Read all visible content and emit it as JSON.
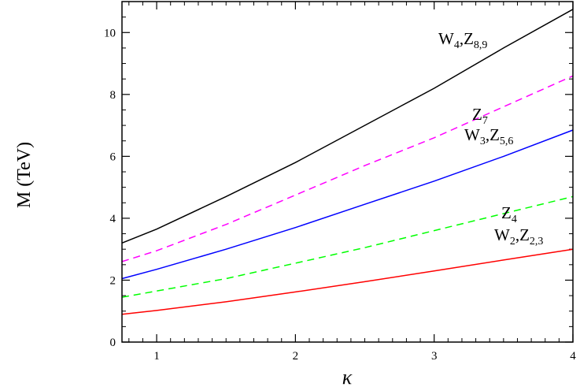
{
  "chart_data": {
    "type": "line",
    "xlabel": "κ",
    "ylabel": "M (TeV)",
    "xlim": [
      0.75,
      4.0
    ],
    "ylim": [
      0,
      11
    ],
    "xticks": [
      1,
      2,
      3,
      4
    ],
    "yticks": [
      0,
      2,
      4,
      6,
      8,
      10
    ],
    "grid": false,
    "legend": "inline labels",
    "series": [
      {
        "label_main": "W",
        "label_sub": "4",
        "label_sep": ",",
        "label_main2": "Z",
        "label_sub2": "8,9",
        "color": "#000000",
        "dash": "solid",
        "x": [
          0.75,
          1.0,
          1.5,
          2.0,
          2.5,
          3.0,
          3.5,
          4.0
        ],
        "y": [
          3.2,
          3.65,
          4.7,
          5.8,
          7.0,
          8.2,
          9.5,
          10.75
        ]
      },
      {
        "label_main": "Z",
        "label_sub": "7",
        "label_sep": "",
        "label_main2": "",
        "label_sub2": "",
        "color": "#ff00ff",
        "dash": "dashed",
        "x": [
          0.75,
          1.0,
          1.5,
          2.0,
          2.5,
          3.0,
          3.5,
          4.0
        ],
        "y": [
          2.6,
          2.95,
          3.8,
          4.75,
          5.7,
          6.6,
          7.6,
          8.6
        ]
      },
      {
        "label_main": "W",
        "label_sub": "3",
        "label_sep": ",",
        "label_main2": "Z",
        "label_sub2": "5,6",
        "color": "#0000ff",
        "dash": "solid",
        "x": [
          0.75,
          1.0,
          1.5,
          2.0,
          2.5,
          3.0,
          3.5,
          4.0
        ],
        "y": [
          2.05,
          2.35,
          3.0,
          3.7,
          4.45,
          5.2,
          6.0,
          6.85
        ]
      },
      {
        "label_main": "Z",
        "label_sub": "4",
        "label_sep": "",
        "label_main2": "",
        "label_sub2": "",
        "color": "#00ff00",
        "dash": "dashed",
        "x": [
          0.75,
          1.0,
          1.5,
          2.0,
          2.5,
          3.0,
          3.5,
          4.0
        ],
        "y": [
          1.45,
          1.65,
          2.05,
          2.55,
          3.05,
          3.6,
          4.15,
          4.7
        ]
      },
      {
        "label_main": "W",
        "label_sub": "2",
        "label_sep": ",",
        "label_main2": "Z",
        "label_sub2": "2,3",
        "color": "#ff0000",
        "dash": "solid",
        "x": [
          0.75,
          1.0,
          1.5,
          2.0,
          2.5,
          3.0,
          3.5,
          4.0
        ],
        "y": [
          0.9,
          1.02,
          1.3,
          1.62,
          1.95,
          2.3,
          2.65,
          3.0
        ]
      }
    ]
  }
}
